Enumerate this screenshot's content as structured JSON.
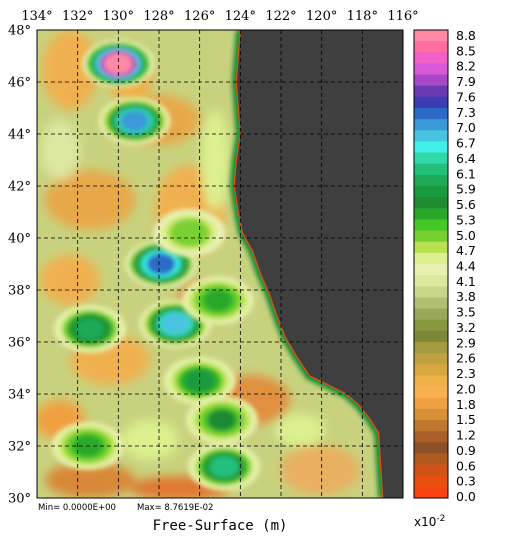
{
  "figure": {
    "title": "",
    "x_title": "Free-Surface (m)",
    "min_label": "Min= 0.0000E+00",
    "max_label": "Max= 8.7619E-02",
    "units_label": "x10",
    "units_exponent": "-2"
  },
  "map": {
    "lon_ticks": [
      "134°",
      "132°",
      "130°",
      "128°",
      "126°",
      "124°",
      "122°",
      "120°",
      "118°",
      "116°"
    ],
    "lat_ticks": [
      "48°",
      "46°",
      "44°",
      "42°",
      "40°",
      "38°",
      "36°",
      "34°",
      "32°",
      "30°"
    ],
    "lon_range": [
      -134,
      -116
    ],
    "lat_range": [
      30,
      48
    ],
    "land_color": "#3f3f3f",
    "grid_lines": "dashed",
    "coast": [
      [
        -124.0,
        48.0
      ],
      [
        -124.1,
        47.0
      ],
      [
        -124.2,
        46.0
      ],
      [
        -124.1,
        45.0
      ],
      [
        -124.0,
        44.0
      ],
      [
        -124.2,
        43.0
      ],
      [
        -124.3,
        42.0
      ],
      [
        -124.1,
        41.0
      ],
      [
        -123.9,
        40.2
      ],
      [
        -123.4,
        39.5
      ],
      [
        -123.0,
        38.6
      ],
      [
        -122.6,
        37.9
      ],
      [
        -122.2,
        37.0
      ],
      [
        -121.8,
        36.2
      ],
      [
        -121.2,
        35.4
      ],
      [
        -120.6,
        34.7
      ],
      [
        -119.8,
        34.4
      ],
      [
        -118.8,
        34.0
      ],
      [
        -118.2,
        33.6
      ],
      [
        -117.6,
        33.0
      ],
      [
        -117.2,
        32.5
      ],
      [
        -117.0,
        30.0
      ]
    ],
    "blobs": [
      {
        "lon": -130.0,
        "lat": 46.7,
        "value": 8.8
      },
      {
        "lon": -129.2,
        "lat": 44.5,
        "value": 7.1
      },
      {
        "lon": -127.9,
        "lat": 39.0,
        "value": 7.4
      },
      {
        "lon": -127.2,
        "lat": 36.7,
        "value": 6.9
      },
      {
        "lon": -131.4,
        "lat": 36.5,
        "value": 6.0
      },
      {
        "lon": -125.1,
        "lat": 37.6,
        "value": 5.3
      },
      {
        "lon": -126.0,
        "lat": 34.5,
        "value": 5.7
      },
      {
        "lon": -124.8,
        "lat": 31.2,
        "value": 6.2
      },
      {
        "lon": -131.5,
        "lat": 32.0,
        "value": 5.4
      },
      {
        "lon": -126.5,
        "lat": 40.2,
        "value": 5.0
      },
      {
        "lon": -124.9,
        "lat": 33.0,
        "value": 5.5
      }
    ]
  },
  "colorbar": {
    "labels": [
      "8.8",
      "8.5",
      "8.2",
      "7.9",
      "7.6",
      "7.3",
      "7.0",
      "6.7",
      "6.4",
      "6.1",
      "5.9",
      "5.6",
      "5.3",
      "5.0",
      "4.7",
      "4.4",
      "4.1",
      "3.8",
      "3.5",
      "3.2",
      "2.9",
      "2.6",
      "2.3",
      "2.0",
      "1.8",
      "1.5",
      "1.2",
      "0.9",
      "0.6",
      "0.3",
      "0.0"
    ],
    "colors_top_to_bottom": [
      "#ff88a4",
      "#ff6d9f",
      "#f060c8",
      "#d85ad8",
      "#a847c8",
      "#6a3ab0",
      "#3d3cb0",
      "#2c6ac8",
      "#3a9ad8",
      "#48c4e0",
      "#40f0e8",
      "#30d8a8",
      "#22c07a",
      "#1eaa58",
      "#1a9a40",
      "#1f8a30",
      "#2aa82a",
      "#48c828",
      "#78d030",
      "#b8e050",
      "#dcf090",
      "#e8f0b0",
      "#dce7a0",
      "#c8d68a",
      "#b0c070",
      "#9aa85a",
      "#88983e",
      "#7e8838",
      "#a49a40",
      "#c0a040",
      "#d8a840",
      "#f0b048",
      "#f8b050",
      "#f0a040",
      "#d89038",
      "#c07830",
      "#a86028",
      "#8e5028",
      "#b05a20",
      "#d05418",
      "#e85010",
      "#f84410"
    ]
  }
}
